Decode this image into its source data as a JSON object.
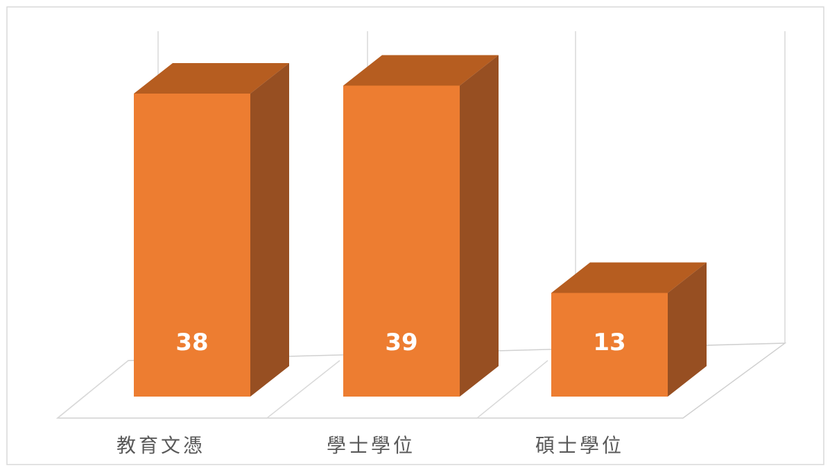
{
  "chart_data": {
    "type": "bar",
    "categories": [
      "教育文憑",
      "學士學位",
      "碩士學位"
    ],
    "values": [
      38,
      39,
      13
    ],
    "data_labels": [
      "38",
      "39",
      "13"
    ],
    "ylim": [
      0,
      42
    ],
    "grid": true,
    "three_d": true,
    "colors": {
      "front": "#ed7d31",
      "top": "#b65d20",
      "side": "#974f22"
    }
  }
}
